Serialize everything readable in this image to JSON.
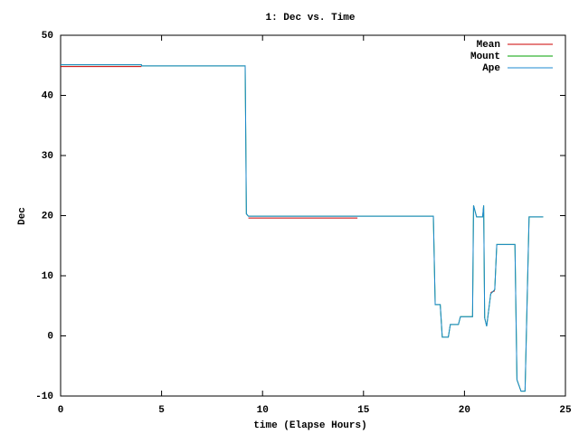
{
  "chart_data": {
    "type": "line",
    "title": "1: Dec vs. Time",
    "x_label": "time (Elapse Hours)",
    "y_label": "Dec",
    "x": [
      0,
      4,
      4.01,
      9.14,
      9.17,
      9.2,
      9.3,
      14.7,
      18.46,
      18.55,
      18.8,
      18.9,
      19.2,
      19.3,
      19.7,
      19.8,
      20.4,
      20.45,
      20.6,
      20.9,
      20.95,
      21.0,
      21.1,
      21.3,
      21.5,
      21.6,
      22.5,
      22.6,
      22.8,
      23.0,
      23.2,
      23.9
    ],
    "series": [
      {
        "name": "Mean",
        "color": "#cc0000",
        "values": [
          44.8,
          44.8,
          null,
          null,
          null,
          null,
          19.6,
          19.6,
          null,
          null,
          null,
          null,
          null,
          null,
          null,
          null,
          null,
          null,
          null,
          null,
          null,
          null,
          null,
          7.2,
          7.5,
          null,
          null,
          null,
          null,
          null,
          null,
          null
        ]
      },
      {
        "name": "Mount",
        "color": "#00a000",
        "values": [
          45.1,
          45.1,
          44.9,
          44.9,
          32.8,
          20.3,
          19.9,
          19.9,
          19.9,
          5.2,
          5.2,
          -0.2,
          -0.2,
          1.9,
          1.9,
          3.2,
          3.2,
          21.7,
          19.8,
          19.8,
          21.7,
          3,
          1.6,
          7,
          7.7,
          15.2,
          15.2,
          -7.3,
          -9.2,
          -9.2,
          19.8,
          19.8
        ]
      },
      {
        "name": "Ape",
        "color": "#1e88d0",
        "values": [
          45.1,
          45.1,
          44.9,
          44.9,
          32.8,
          20.3,
          19.9,
          19.9,
          19.9,
          5.2,
          5.2,
          -0.2,
          -0.2,
          1.9,
          1.9,
          3.2,
          3.2,
          21.7,
          19.8,
          19.8,
          21.7,
          3,
          1.6,
          7,
          7.7,
          15.2,
          15.2,
          -7.3,
          -9.2,
          -9.2,
          19.8,
          19.8
        ]
      }
    ],
    "xlim": [
      0,
      25
    ],
    "xticks": [
      0,
      5,
      10,
      15,
      20,
      25
    ],
    "ylim": [
      -10,
      50
    ],
    "yticks": [
      -10,
      0,
      10,
      20,
      30,
      40,
      50
    ],
    "grid": false,
    "legend": "top-right"
  }
}
